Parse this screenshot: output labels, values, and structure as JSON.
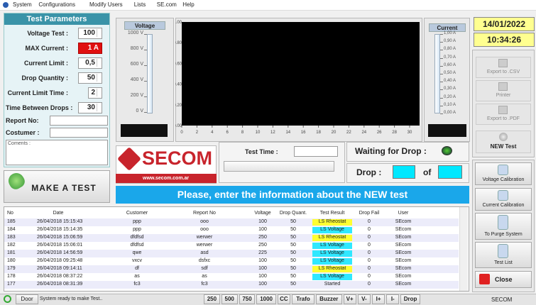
{
  "menu": [
    "System",
    "Configurations",
    "Modify Users",
    "Lists",
    "SE.com",
    "Help"
  ],
  "params": {
    "title": "Test Parameters",
    "fields": [
      {
        "label": "Voltage Test :",
        "value": "100"
      },
      {
        "label": "MAX Current :",
        "value": "1 A"
      },
      {
        "label": "Current Limit :",
        "value": "0,5"
      },
      {
        "label": "Drop Quantity :",
        "value": "50"
      },
      {
        "label": "Current Limit Time :",
        "value": "2"
      },
      {
        "label": "Time Between Drops :",
        "value": "30"
      }
    ],
    "report_label": "Report No:",
    "customer_label": "Costumer :",
    "comments_label": "Coments :"
  },
  "make_test": "MAKE A TEST",
  "voltage_gauge": {
    "title": "Voltage",
    "ticks": [
      "1000 V",
      "800 V",
      "600 V",
      "400 V",
      "200 V",
      "0 V"
    ]
  },
  "plot": {
    "yticks": [
      "1.00",
      "0.80",
      "0.60",
      "0.40",
      "0.20",
      "0.00"
    ],
    "xticks": [
      "0",
      "2",
      "4",
      "6",
      "8",
      "10",
      "12",
      "14",
      "16",
      "18",
      "20",
      "22",
      "24",
      "26",
      "28",
      "30"
    ]
  },
  "current_gauge": {
    "title": "Current",
    "ticks": [
      "1,00 A",
      "0,90 A",
      "0,80 A",
      "0,70 A",
      "0,60 A",
      "0,50 A",
      "0,40 A",
      "0,30 A",
      "0,20 A",
      "0,10 A",
      "0,00 A"
    ]
  },
  "date": "14/01/2022",
  "time": "10:34:26",
  "side_top": [
    "Export to .CSV",
    "Printer",
    "Export to .PDF"
  ],
  "new_test": "NEW Test",
  "logo": {
    "name": "SECOM",
    "url": "www.secom.com.ar"
  },
  "test_time_label": "Test Time :",
  "waiting_label": "Waiting for Drop :",
  "drop_label": "Drop :",
  "of_label": "of",
  "banner": "Please, enter the information about the NEW test",
  "table": {
    "columns": [
      "No",
      "Date",
      "Customer",
      "Report No",
      "Voltage",
      "Drop Quant.",
      "Test Result",
      "Drop Fail",
      "User"
    ],
    "rows": [
      [
        "185",
        "26/04/2018 15:15:43",
        "ppp",
        "ooo",
        "100",
        "50",
        "LS Rheostat",
        "0",
        "SEcom"
      ],
      [
        "184",
        "26/04/2018 15:14:35",
        "ppp",
        "ooo",
        "100",
        "50",
        "LS Voltage",
        "0",
        "SEcom"
      ],
      [
        "183",
        "26/04/2018 15:06:59",
        "dfdfsd",
        "werwer",
        "250",
        "50",
        "LS Rheostat",
        "0",
        "SEcom"
      ],
      [
        "182",
        "26/04/2018 15:06:01",
        "dfdfsd",
        "werwer",
        "250",
        "50",
        "LS Voltage",
        "0",
        "SEcom"
      ],
      [
        "181",
        "26/04/2018 14:56:59",
        "qwe",
        "asd",
        "225",
        "50",
        "LS Voltage",
        "0",
        "SEcom"
      ],
      [
        "180",
        "26/04/2018 09:25:48",
        "vxcv",
        "dsfxc",
        "100",
        "50",
        "LS Voltage",
        "0",
        "SEcom"
      ],
      [
        "179",
        "26/04/2018 09:14:11",
        "df",
        "sdf",
        "100",
        "50",
        "LS Rheostat",
        "0",
        "SEcom"
      ],
      [
        "178",
        "26/04/2018 08:37:22",
        "as",
        "as",
        "100",
        "50",
        "LS Voltage",
        "0",
        "SEcom"
      ],
      [
        "177",
        "26/04/2018 08:31:39",
        "fc3",
        "fc3",
        "100",
        "50",
        "Started",
        "0",
        "SEcom"
      ]
    ]
  },
  "side_bottom": [
    "Voltage Calibration",
    "Current Calibration",
    "To Purge System",
    "Test List",
    "Close"
  ],
  "status": {
    "door": "Door",
    "message": "System ready to make Test..",
    "buttons": [
      "250",
      "500",
      "750",
      "1000",
      "CC",
      "Trafo",
      "Buzzer",
      "V+",
      "V-",
      "I+",
      "I-",
      "Drop"
    ],
    "right": "SECOM"
  }
}
